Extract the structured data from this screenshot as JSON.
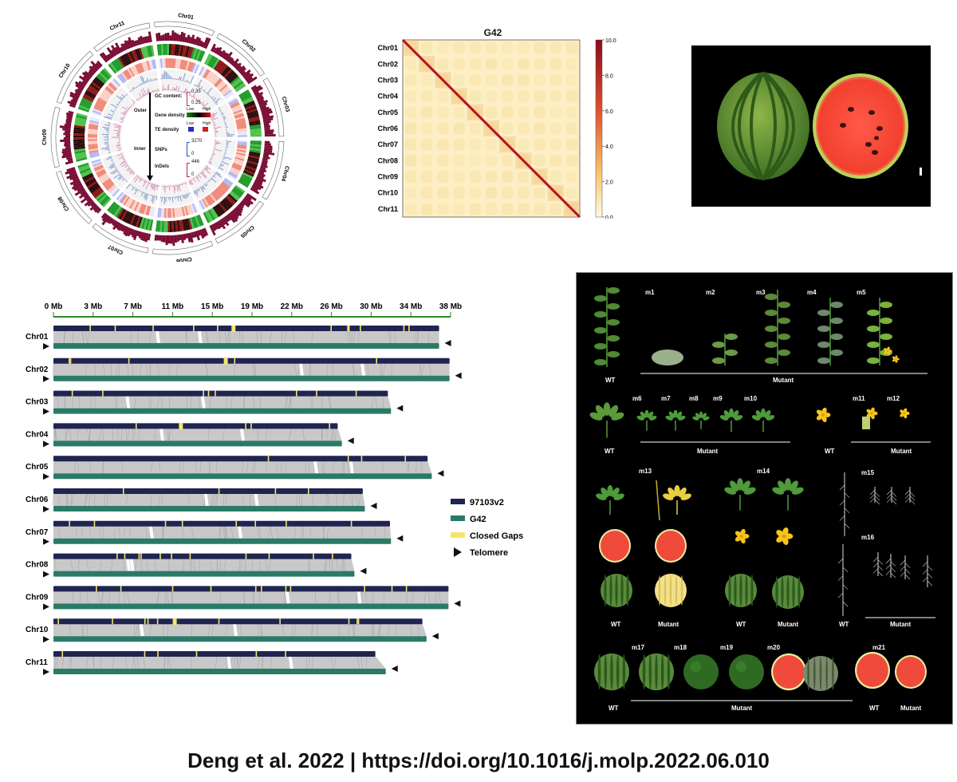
{
  "circos": {
    "chromosomes": [
      "Chr01",
      "Chr02",
      "Chr03",
      "Chr04",
      "Chr05",
      "Chr06",
      "Chr07",
      "Chr08",
      "Chr09",
      "Chr10",
      "Chr11"
    ],
    "legend": {
      "outer": "Outer",
      "inner": "Inner",
      "gc_label": "GC content:",
      "gc_hi": "0.35",
      "gc_lo": "0.25",
      "gene_label": "Gene density",
      "low": "Low",
      "high": "High",
      "te_label": "TE density",
      "snp_label": "SNPs",
      "snp_hi": "3270",
      "snp_lo": "0",
      "indel_label": "InDels",
      "indel_hi": "446",
      "indel_lo": "0"
    }
  },
  "hic": {
    "title": "G42",
    "chromosomes": [
      "Chr01",
      "Chr02",
      "Chr03",
      "Chr04",
      "Chr05",
      "Chr06",
      "Chr07",
      "Chr08",
      "Chr09",
      "Chr10",
      "Chr11"
    ],
    "colorbar_ticks": [
      "10.0",
      "8.0",
      "6.0",
      "4.0",
      "2.0",
      "0.0"
    ]
  },
  "synteny": {
    "axis_ticks": [
      "0 Mb",
      "3 Mb",
      "7 Mb",
      "11 Mb",
      "15 Mb",
      "19 Mb",
      "22 Mb",
      "26 Mb",
      "30 Mb",
      "34 Mb",
      "38 Mb"
    ],
    "max_mb": 38,
    "chromosomes": [
      {
        "name": "Chr01",
        "ref": 36.9,
        "g42": 36.9
      },
      {
        "name": "Chr02",
        "ref": 37.9,
        "g42": 37.9
      },
      {
        "name": "Chr03",
        "ref": 32.0,
        "g42": 32.3
      },
      {
        "name": "Chr04",
        "ref": 27.2,
        "g42": 27.6
      },
      {
        "name": "Chr05",
        "ref": 35.8,
        "g42": 36.2
      },
      {
        "name": "Chr06",
        "ref": 29.6,
        "g42": 29.8
      },
      {
        "name": "Chr07",
        "ref": 32.2,
        "g42": 32.3
      },
      {
        "name": "Chr08",
        "ref": 28.5,
        "g42": 28.8
      },
      {
        "name": "Chr09",
        "ref": 37.8,
        "g42": 37.8
      },
      {
        "name": "Chr10",
        "ref": 35.3,
        "g42": 35.7
      },
      {
        "name": "Chr11",
        "ref": 30.8,
        "g42": 31.8
      }
    ],
    "legend": [
      {
        "label": "97103v2",
        "color": "#1f2450",
        "kind": "bar"
      },
      {
        "label": "G42",
        "color": "#2a7a68",
        "kind": "bar"
      },
      {
        "label": "Closed Gaps",
        "color": "#f5e56b",
        "kind": "bar"
      },
      {
        "label": "Telomere",
        "color": "#111111",
        "kind": "triangle"
      }
    ]
  },
  "mutants": {
    "labels": {
      "m1": "m1",
      "m2": "m2",
      "m3": "m3",
      "m4": "m4",
      "m5": "m5",
      "m6": "m6",
      "m7": "m7",
      "m8": "m8",
      "m9": "m9",
      "m10": "m10",
      "m11": "m11",
      "m12": "m12",
      "m13": "m13",
      "m14": "m14",
      "m15": "m15",
      "m16": "m16",
      "m17": "m17",
      "m18": "m18",
      "m19": "m19",
      "m20": "m20",
      "m21": "m21"
    },
    "wt": "WT",
    "mutant": "Mutant"
  },
  "footer": "Deng et al. 2022 | https://doi.org/10.1016/j.molp.2022.06.010"
}
